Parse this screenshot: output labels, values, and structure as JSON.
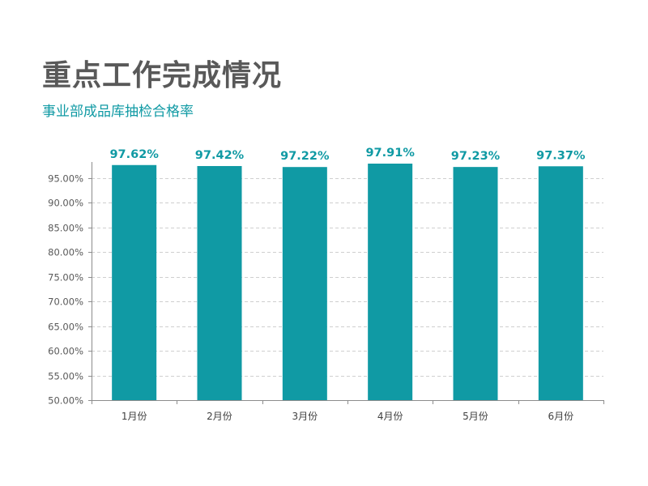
{
  "page": {
    "title": "重点工作完成情况",
    "subtitle": "事业部成品库抽检合格率"
  },
  "colors": {
    "bar": "#109aa4",
    "title": "#595959",
    "accent": "#109aa4",
    "grid": "#cfcfcf",
    "axis": "#8c8c8c"
  },
  "chart_data": {
    "type": "bar",
    "title": "",
    "xlabel": "",
    "ylabel": "",
    "categories": [
      "1月份",
      "2月份",
      "3月份",
      "4月份",
      "5月份",
      "6月份"
    ],
    "values": [
      97.62,
      97.42,
      97.22,
      97.91,
      97.23,
      97.37
    ],
    "data_labels": [
      "97.62%",
      "97.42%",
      "97.22%",
      "97.91%",
      "97.23%",
      "97.37%"
    ],
    "ylim": [
      50,
      97.91
    ],
    "yticks": [
      50,
      55,
      60,
      65,
      70,
      75,
      80,
      85,
      90,
      95
    ],
    "ytick_labels": [
      "50.00%",
      "55.00%",
      "60.00%",
      "65.00%",
      "70.00%",
      "75.00%",
      "80.00%",
      "85.00%",
      "90.00%",
      "95.00%"
    ],
    "grid": true,
    "grid_style": "dashed",
    "legend": "none"
  }
}
